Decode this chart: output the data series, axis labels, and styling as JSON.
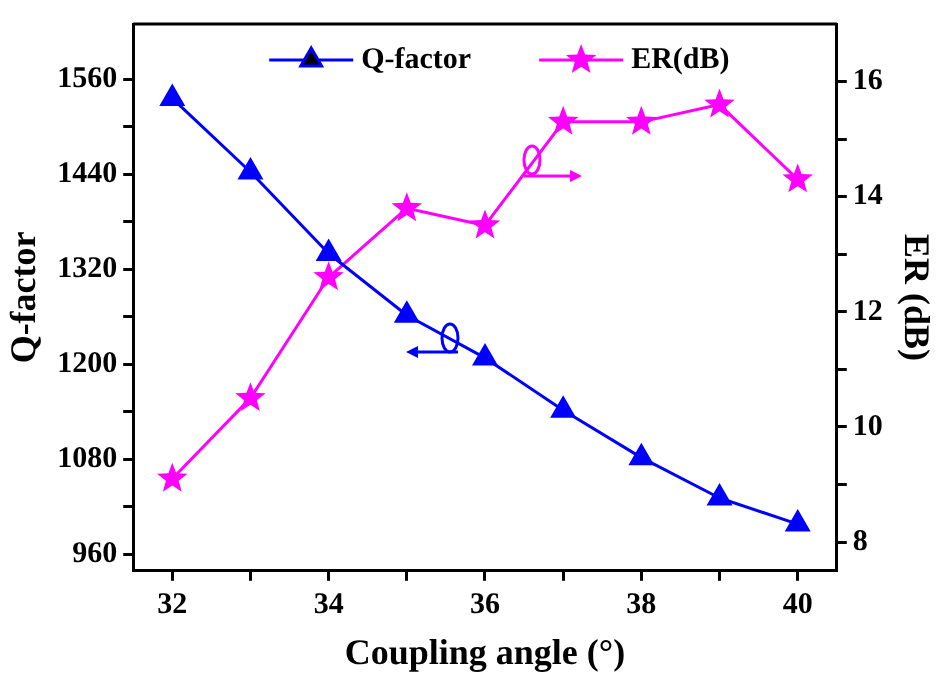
{
  "chart_data": {
    "type": "line",
    "xlabel": "Coupling angle (°)",
    "ylabel": "Q-factor",
    "y2label": "ER (dB)",
    "x": [
      32,
      33,
      34,
      35,
      36,
      37,
      38,
      39,
      40
    ],
    "xlim": [
      31.5,
      40.5
    ],
    "xticks": [
      32,
      {
        "value": 33,
        "label": null
      },
      34,
      {
        "value": 35,
        "label": null
      },
      36,
      {
        "value": 37,
        "label": null
      },
      38,
      {
        "value": 39,
        "label": null
      },
      40
    ],
    "ylim": [
      939,
      1630
    ],
    "yticks": [
      960,
      {
        "value": 1020,
        "label": null
      },
      1080,
      {
        "value": 1140,
        "label": null
      },
      1200,
      {
        "value": 1260,
        "label": null
      },
      1320,
      {
        "value": 1380,
        "label": null
      },
      1440,
      {
        "value": 1500,
        "label": null
      },
      1560
    ],
    "y2lim": [
      7.5,
      17
    ],
    "y2ticks": [
      8,
      {
        "value": 9,
        "label": null
      },
      10,
      {
        "value": 11,
        "label": null
      },
      12,
      {
        "value": 13,
        "label": null
      },
      14,
      {
        "value": 15,
        "label": null
      },
      16
    ],
    "series": [
      {
        "name": "Q-factor",
        "color": "#0000ff",
        "marker": "triangle",
        "values": [
          1536,
          1443,
          1340,
          1262,
          1208,
          1142,
          1082,
          1031,
          998
        ]
      },
      {
        "name": "ER(dB)",
        "color": "#ff00ff",
        "marker": "star",
        "axis": "y2",
        "values": [
          9.1,
          10.5,
          12.6,
          13.8,
          13.5,
          15.3,
          15.3,
          15.6,
          14.3
        ]
      }
    ],
    "grid": false,
    "legend": "top",
    "line_style": "solid"
  }
}
